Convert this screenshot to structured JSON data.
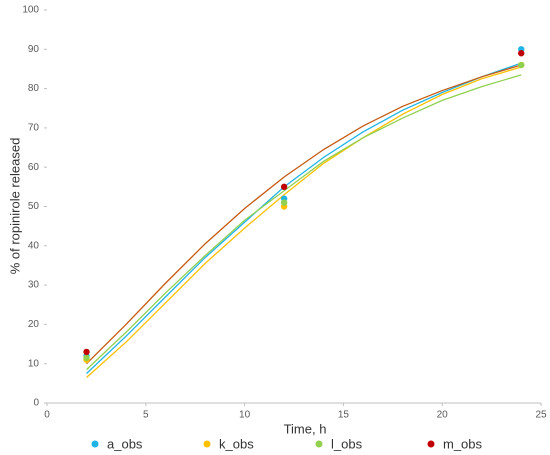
{
  "chart_data": {
    "type": "scatter",
    "x_label": "Time, h",
    "y_label": "% of ropinirole released",
    "xlim": [
      0,
      25
    ],
    "xticks": [
      0,
      5,
      10,
      15,
      20,
      25
    ],
    "ylim": [
      0,
      100
    ],
    "yticks": [
      0,
      10,
      20,
      30,
      40,
      50,
      60,
      70,
      80,
      90,
      100
    ],
    "legend": "bottom",
    "series": [
      {
        "name": "a_obs",
        "color": "#1fb4e6",
        "x": [
          2,
          12,
          24
        ],
        "values": [
          12,
          52,
          90
        ]
      },
      {
        "name": "k_obs",
        "color": "#ffc000",
        "x": [
          2,
          12,
          24
        ],
        "values": [
          11,
          50,
          86
        ]
      },
      {
        "name": "l_obs",
        "color": "#92d050",
        "x": [
          2,
          12,
          24
        ],
        "values": [
          11.5,
          51,
          86
        ]
      },
      {
        "name": "m_obs",
        "color": "#c00000",
        "x": [
          2,
          12,
          24
        ],
        "values": [
          13,
          55,
          89
        ]
      }
    ],
    "fits": [
      {
        "color": "#1fb4e6",
        "x": [
          2,
          4,
          6,
          8,
          10,
          12,
          14,
          16,
          18,
          20,
          22,
          24
        ],
        "values": [
          7.5,
          17,
          27,
          37,
          46,
          55,
          62.5,
          69,
          74.5,
          79,
          83,
          86.5
        ]
      },
      {
        "color": "#ffc000",
        "x": [
          2,
          4,
          6,
          8,
          10,
          12,
          14,
          16,
          18,
          20,
          22,
          24
        ],
        "values": [
          6.5,
          15.5,
          25.5,
          35.5,
          44.5,
          53,
          61,
          67.5,
          73.5,
          78.5,
          82.5,
          85.5
        ]
      },
      {
        "color": "#92d050",
        "x": [
          2,
          4,
          6,
          8,
          10,
          12,
          14,
          16,
          18,
          20,
          22,
          24
        ],
        "values": [
          8.5,
          18,
          28,
          37.5,
          46.5,
          54,
          61.5,
          67.5,
          72.5,
          77,
          80.5,
          83.5
        ]
      },
      {
        "color": "#c55a11",
        "x": [
          2,
          4,
          6,
          8,
          10,
          12,
          14,
          16,
          18,
          20,
          22,
          24
        ],
        "values": [
          10,
          20,
          30.5,
          40.5,
          49.5,
          57.5,
          64.5,
          70.5,
          75.5,
          79.5,
          83,
          86
        ]
      }
    ]
  }
}
